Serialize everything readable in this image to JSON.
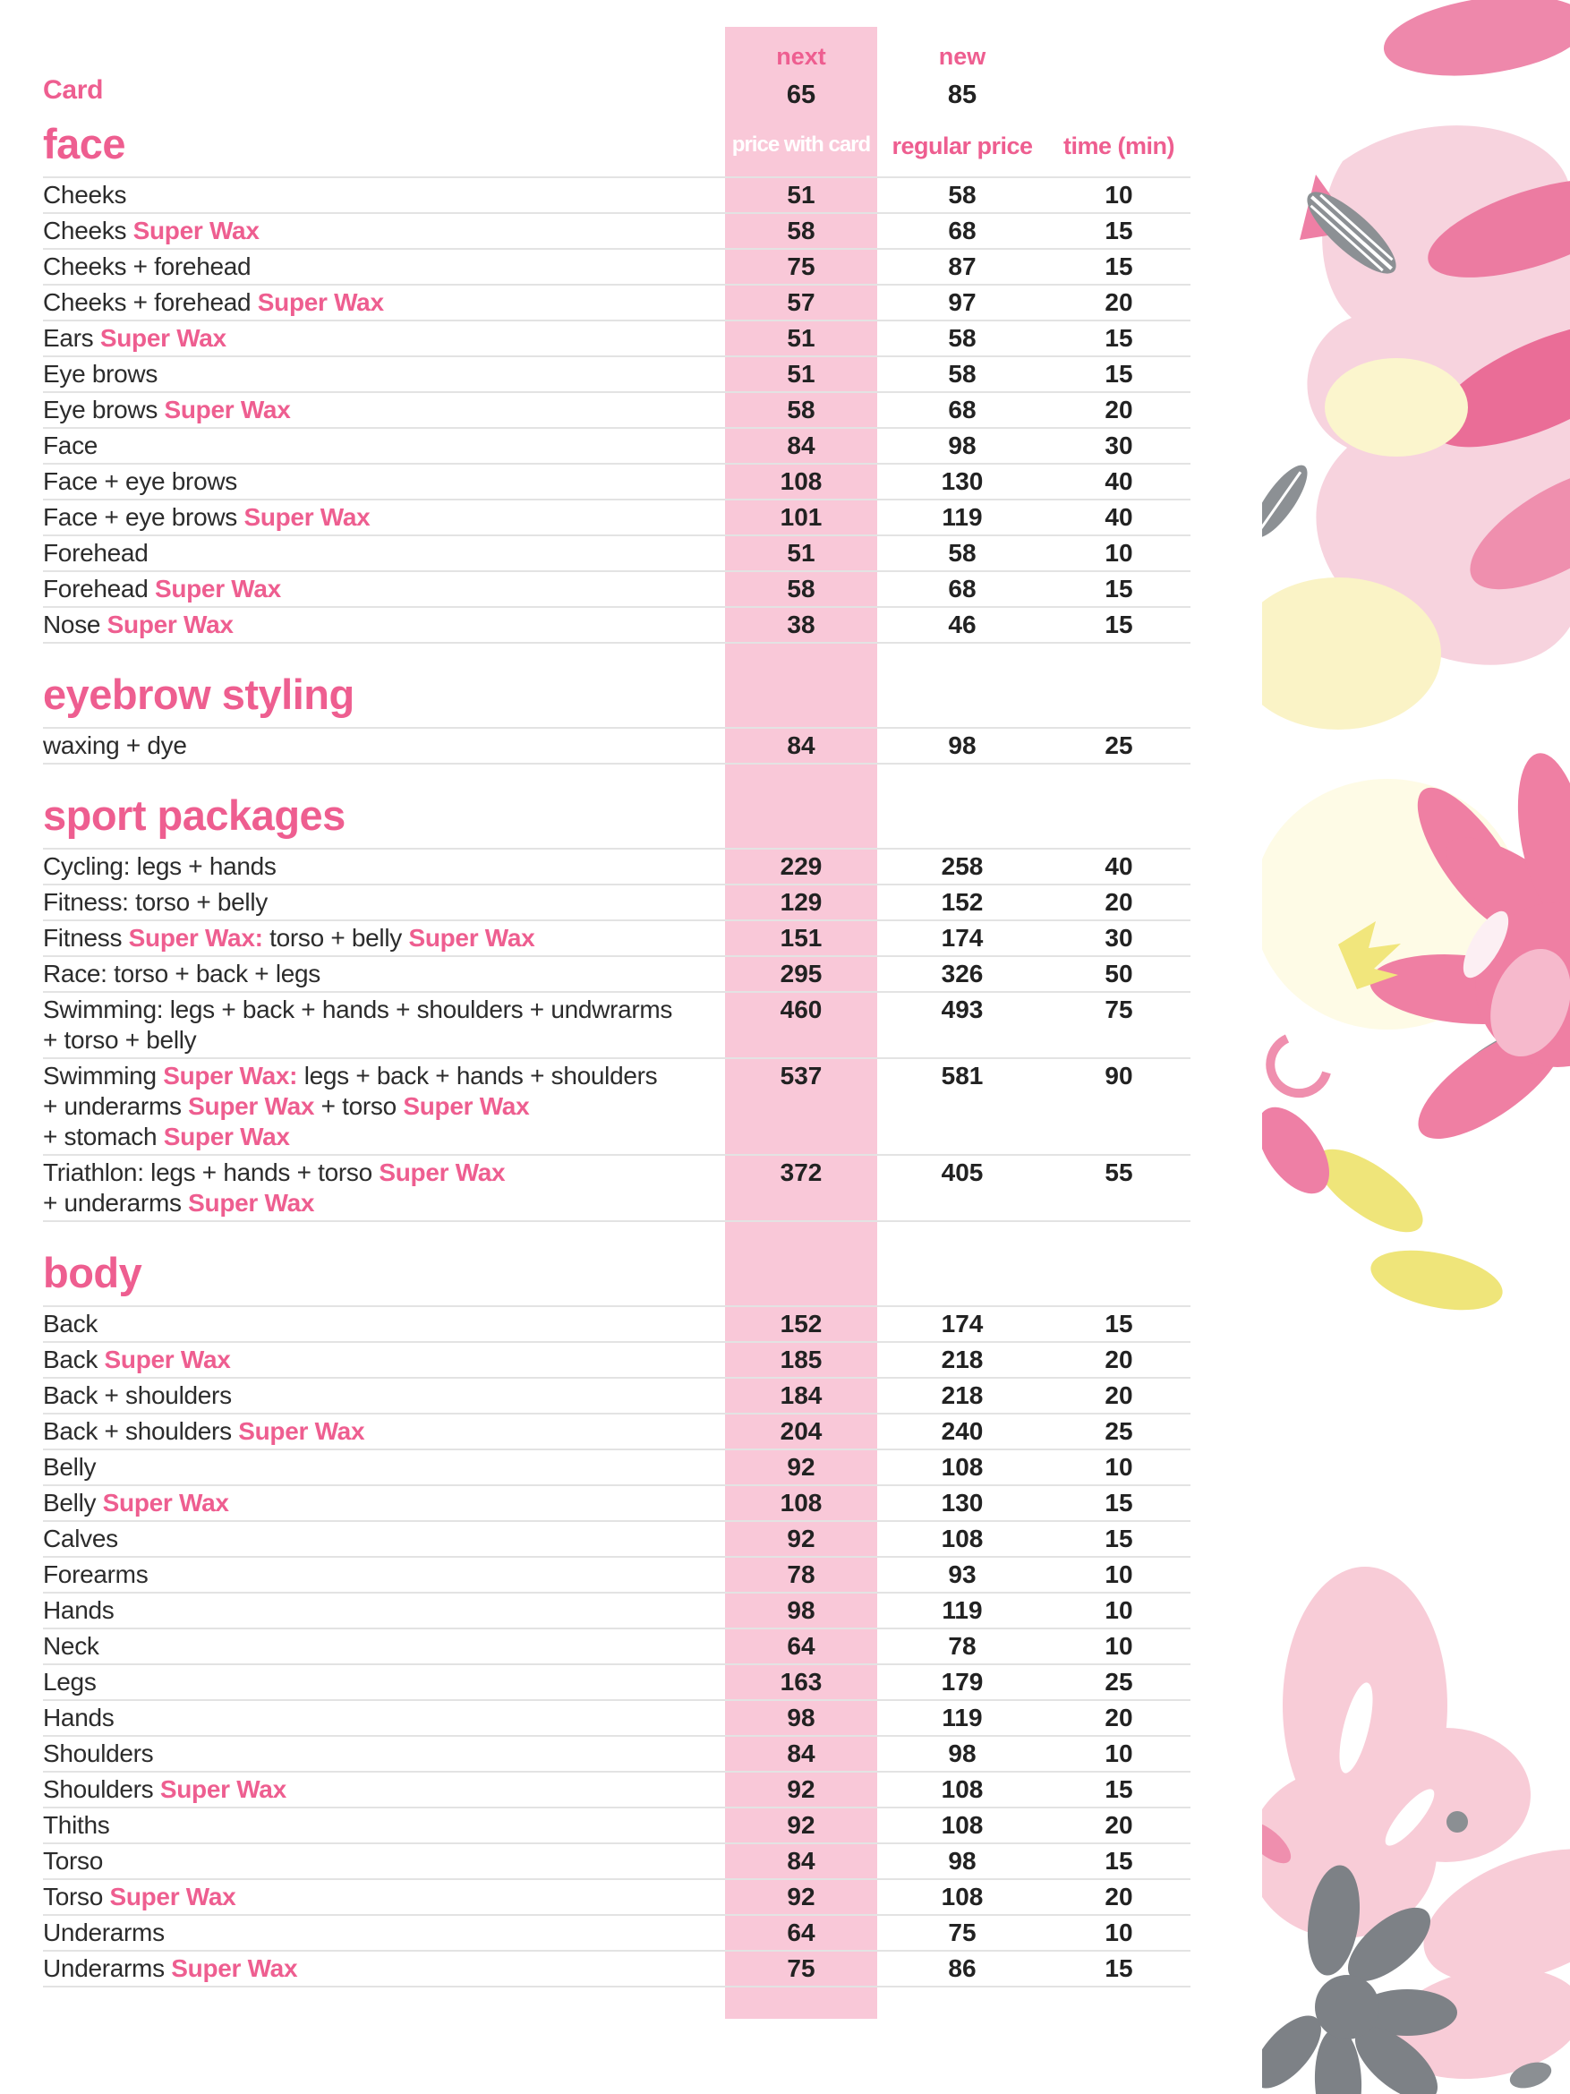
{
  "colors": {
    "accent": "#ee5e90",
    "price_column_bg": "#f9c8d8",
    "text": "#2c2c2c",
    "number": "#222222",
    "divider": "#e3e3e3",
    "price_column_header_text": "#ffffff"
  },
  "header": {
    "card_label": "Card",
    "next_label": "next",
    "next_value": "65",
    "new_label": "new",
    "new_value": "85",
    "price_with_card_label": "price with card",
    "regular_price_label": "regular price",
    "time_label": "time (min)"
  },
  "sections": [
    {
      "title": "face",
      "rows": [
        {
          "name": [
            {
              "t": "Cheeks"
            }
          ],
          "card": "51",
          "regular": "58",
          "time": "10"
        },
        {
          "name": [
            {
              "t": "Cheeks "
            },
            {
              "t": "Super Wax",
              "a": true
            }
          ],
          "card": "58",
          "regular": "68",
          "time": "15"
        },
        {
          "name": [
            {
              "t": "Cheeks + forehead"
            }
          ],
          "card": "75",
          "regular": "87",
          "time": "15"
        },
        {
          "name": [
            {
              "t": "Cheeks + forehead "
            },
            {
              "t": "Super Wax",
              "a": true
            }
          ],
          "card": "57",
          "regular": "97",
          "time": "20"
        },
        {
          "name": [
            {
              "t": "Ears "
            },
            {
              "t": "Super Wax",
              "a": true
            }
          ],
          "card": "51",
          "regular": "58",
          "time": "15"
        },
        {
          "name": [
            {
              "t": "Eye brows"
            }
          ],
          "card": "51",
          "regular": "58",
          "time": "15"
        },
        {
          "name": [
            {
              "t": "Eye brows "
            },
            {
              "t": "Super Wax",
              "a": true
            }
          ],
          "card": "58",
          "regular": "68",
          "time": "20"
        },
        {
          "name": [
            {
              "t": "Face"
            }
          ],
          "card": "84",
          "regular": "98",
          "time": "30"
        },
        {
          "name": [
            {
              "t": "Face + eye brows"
            }
          ],
          "card": "108",
          "regular": "130",
          "time": "40"
        },
        {
          "name": [
            {
              "t": "Face + eye brows "
            },
            {
              "t": "Super Wax",
              "a": true
            }
          ],
          "card": "101",
          "regular": "119",
          "time": "40"
        },
        {
          "name": [
            {
              "t": "Forehead"
            }
          ],
          "card": "51",
          "regular": "58",
          "time": "10"
        },
        {
          "name": [
            {
              "t": "Forehead "
            },
            {
              "t": "Super Wax",
              "a": true
            }
          ],
          "card": "58",
          "regular": "68",
          "time": "15"
        },
        {
          "name": [
            {
              "t": "Nose "
            },
            {
              "t": "Super Wax",
              "a": true
            }
          ],
          "card": "38",
          "regular": "46",
          "time": "15"
        }
      ]
    },
    {
      "title": "eyebrow styling",
      "rows": [
        {
          "name": [
            {
              "t": "waxing + dye"
            }
          ],
          "card": "84",
          "regular": "98",
          "time": "25"
        }
      ]
    },
    {
      "title": "sport packages",
      "rows": [
        {
          "name": [
            {
              "t": "Cycling: legs + hands"
            }
          ],
          "card": "229",
          "regular": "258",
          "time": "40"
        },
        {
          "name": [
            {
              "t": "Fitness: torso + belly"
            }
          ],
          "card": "129",
          "regular": "152",
          "time": "20"
        },
        {
          "name": [
            {
              "t": "Fitness "
            },
            {
              "t": "Super Wax:",
              "a": true
            },
            {
              "t": " torso + belly "
            },
            {
              "t": "Super Wax",
              "a": true
            }
          ],
          "card": "151",
          "regular": "174",
          "time": "30"
        },
        {
          "name": [
            {
              "t": "Race: torso + back + legs"
            }
          ],
          "card": "295",
          "regular": "326",
          "time": "50"
        },
        {
          "name": [
            {
              "t": "Swimming: legs + back + hands + shoulders + undwrarms\n+ torso + belly"
            }
          ],
          "card": "460",
          "regular": "493",
          "time": "75"
        },
        {
          "name": [
            {
              "t": "Swimming "
            },
            {
              "t": "Super Wax:",
              "a": true
            },
            {
              "t": " legs + back + hands + shoulders\n+ underarms "
            },
            {
              "t": "Super Wax",
              "a": true
            },
            {
              "t": " + torso "
            },
            {
              "t": "Super Wax",
              "a": true
            },
            {
              "t": "\n+ stomach "
            },
            {
              "t": "Super Wax",
              "a": true
            }
          ],
          "card": "537",
          "regular": "581",
          "time": "90"
        },
        {
          "name": [
            {
              "t": "Triathlon: legs + hands + torso "
            },
            {
              "t": "Super Wax",
              "a": true
            },
            {
              "t": "\n+ underarms "
            },
            {
              "t": "Super Wax",
              "a": true
            }
          ],
          "card": "372",
          "regular": "405",
          "time": "55"
        }
      ]
    },
    {
      "title": "body",
      "rows": [
        {
          "name": [
            {
              "t": "Back"
            }
          ],
          "card": "152",
          "regular": "174",
          "time": "15"
        },
        {
          "name": [
            {
              "t": "Back "
            },
            {
              "t": "Super Wax",
              "a": true
            }
          ],
          "card": "185",
          "regular": "218",
          "time": "20"
        },
        {
          "name": [
            {
              "t": "Back + shoulders"
            }
          ],
          "card": "184",
          "regular": "218",
          "time": "20"
        },
        {
          "name": [
            {
              "t": "Back + shoulders "
            },
            {
              "t": "Super Wax",
              "a": true
            }
          ],
          "card": "204",
          "regular": "240",
          "time": "25"
        },
        {
          "name": [
            {
              "t": "Belly"
            }
          ],
          "card": "92",
          "regular": "108",
          "time": "10"
        },
        {
          "name": [
            {
              "t": "Belly "
            },
            {
              "t": "Super Wax",
              "a": true
            }
          ],
          "card": "108",
          "regular": "130",
          "time": "15"
        },
        {
          "name": [
            {
              "t": "Calves"
            }
          ],
          "card": "92",
          "regular": "108",
          "time": "15"
        },
        {
          "name": [
            {
              "t": "Forearms"
            }
          ],
          "card": "78",
          "regular": "93",
          "time": "10"
        },
        {
          "name": [
            {
              "t": "Hands"
            }
          ],
          "card": "98",
          "regular": "119",
          "time": "10"
        },
        {
          "name": [
            {
              "t": "Neck"
            }
          ],
          "card": "64",
          "regular": "78",
          "time": "10"
        },
        {
          "name": [
            {
              "t": "Legs"
            }
          ],
          "card": "163",
          "regular": "179",
          "time": "25"
        },
        {
          "name": [
            {
              "t": "Hands"
            }
          ],
          "card": "98",
          "regular": "119",
          "time": "20"
        },
        {
          "name": [
            {
              "t": "Shoulders"
            }
          ],
          "card": "84",
          "regular": "98",
          "time": "10"
        },
        {
          "name": [
            {
              "t": "Shoulders "
            },
            {
              "t": "Super Wax",
              "a": true
            }
          ],
          "card": "92",
          "regular": "108",
          "time": "15"
        },
        {
          "name": [
            {
              "t": "Thiths"
            }
          ],
          "card": "92",
          "regular": "108",
          "time": "20"
        },
        {
          "name": [
            {
              "t": "Torso"
            }
          ],
          "card": "84",
          "regular": "98",
          "time": "15"
        },
        {
          "name": [
            {
              "t": "Torso "
            },
            {
              "t": "Super Wax",
              "a": true
            }
          ],
          "card": "92",
          "regular": "108",
          "time": "20"
        },
        {
          "name": [
            {
              "t": "Underarms"
            }
          ],
          "card": "64",
          "regular": "75",
          "time": "10"
        },
        {
          "name": [
            {
              "t": "Underarms "
            },
            {
              "t": "Super Wax",
              "a": true
            }
          ],
          "card": "75",
          "regular": "86",
          "time": "15"
        }
      ]
    }
  ]
}
